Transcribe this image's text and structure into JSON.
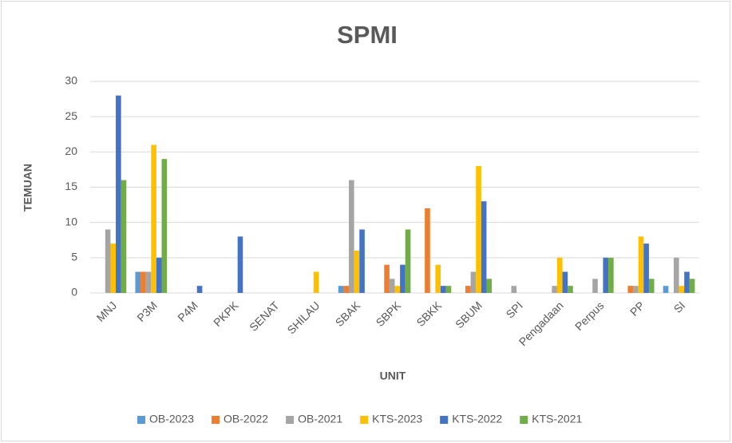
{
  "chart_data": {
    "type": "bar",
    "title": "SPMI",
    "x_label": "UNIT",
    "y_label": "TEMUAN",
    "categories": [
      "MNJ",
      "P3M",
      "P4M",
      "PKPK",
      "SENAT",
      "SHILAU",
      "SBAK",
      "SBPK",
      "SBKK",
      "SBUM",
      "SPI",
      "Pengadaan",
      "Perpus",
      "PP",
      "SI"
    ],
    "series": [
      {
        "name": "OB-2023",
        "color": "#5b9bd5",
        "values": [
          0,
          3,
          0,
          0,
          0,
          0,
          1,
          0,
          0,
          0,
          0,
          0,
          0,
          0,
          1
        ]
      },
      {
        "name": "OB-2022",
        "color": "#ed7d31",
        "values": [
          0,
          3,
          0,
          0,
          0,
          0,
          1,
          4,
          12,
          1,
          0,
          0,
          0,
          1,
          0
        ]
      },
      {
        "name": "OB-2021",
        "color": "#a5a5a5",
        "values": [
          9,
          3,
          0,
          0,
          0,
          0,
          16,
          2,
          0,
          3,
          1,
          1,
          2,
          1,
          5
        ]
      },
      {
        "name": "KTS-2023",
        "color": "#ffc000",
        "values": [
          7,
          21,
          0,
          0,
          0,
          3,
          6,
          1,
          4,
          18,
          0,
          5,
          0,
          8,
          1
        ]
      },
      {
        "name": "KTS-2022",
        "color": "#4472c4",
        "values": [
          28,
          5,
          1,
          8,
          0,
          0,
          9,
          4,
          1,
          13,
          0,
          3,
          5,
          7,
          3
        ]
      },
      {
        "name": "KTS-2021",
        "color": "#70ad47",
        "values": [
          16,
          19,
          0,
          0,
          0,
          0,
          0,
          9,
          1,
          2,
          0,
          1,
          5,
          2,
          2
        ]
      }
    ],
    "ylim": [
      0,
      30
    ],
    "yticks": [
      0,
      5,
      10,
      15,
      20,
      25,
      30
    ],
    "grid": true,
    "legend": "bottom"
  }
}
